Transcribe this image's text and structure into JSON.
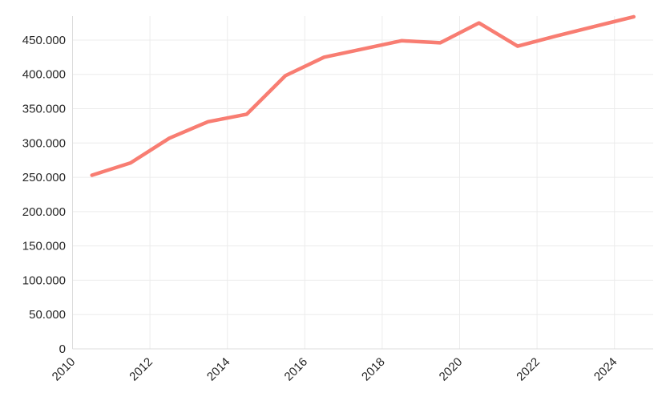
{
  "chart_data": {
    "type": "line",
    "title": "",
    "xlabel": "",
    "ylabel": "",
    "x": [
      2010,
      2011,
      2012,
      2013,
      2014,
      2015,
      2016,
      2017,
      2018,
      2019,
      2020,
      2021,
      2022,
      2023,
      2024
    ],
    "values": [
      253000,
      271000,
      307000,
      331000,
      342000,
      398000,
      425000,
      437000,
      449000,
      446000,
      475000,
      441000,
      456000,
      470000,
      484000
    ],
    "ylim": [
      0,
      485000
    ],
    "y_ticks": [
      {
        "value": 0,
        "label": "0"
      },
      {
        "value": 50000,
        "label": "50.000"
      },
      {
        "value": 100000,
        "label": "100.000"
      },
      {
        "value": 150000,
        "label": "150.000"
      },
      {
        "value": 200000,
        "label": "200.000"
      },
      {
        "value": 250000,
        "label": "250.000"
      },
      {
        "value": 300000,
        "label": "300.000"
      },
      {
        "value": 350000,
        "label": "350.000"
      },
      {
        "value": 400000,
        "label": "400.000"
      },
      {
        "value": 450000,
        "label": "450.000"
      }
    ],
    "x_ticks": [
      {
        "year": 2010,
        "label": "2010"
      },
      {
        "year": 2012,
        "label": "2012"
      },
      {
        "year": 2014,
        "label": "2014"
      },
      {
        "year": 2016,
        "label": "2016"
      },
      {
        "year": 2018,
        "label": "2018"
      },
      {
        "year": 2020,
        "label": "2020"
      },
      {
        "year": 2022,
        "label": "2022"
      },
      {
        "year": 2024,
        "label": "2024"
      }
    ],
    "grid": "on",
    "legend": "none",
    "colors": {
      "line": "#f87d72",
      "grid": "#ececec",
      "axis_line": "#dcdcdc",
      "tick_label": "#262626",
      "background": "#ffffff"
    }
  }
}
